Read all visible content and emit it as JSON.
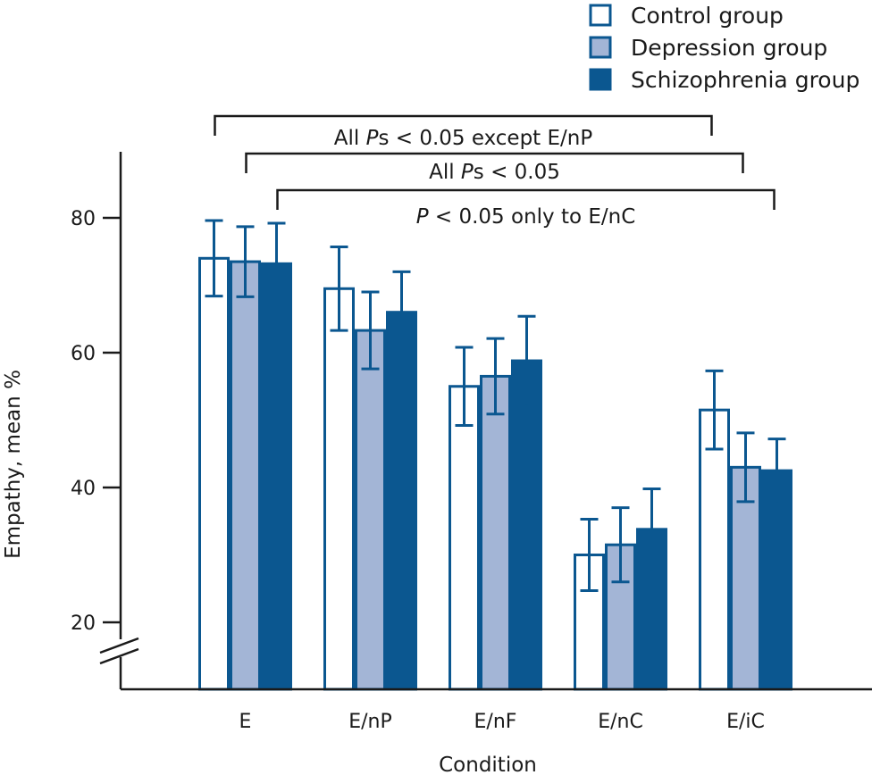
{
  "chart_data": {
    "type": "bar",
    "title": "",
    "xlabel": "Condition",
    "ylabel": "Empathy, mean %",
    "ylim": [
      10,
      90
    ],
    "axis_break": true,
    "yticks": [
      20,
      40,
      60,
      80
    ],
    "categories": [
      "E",
      "E/nP",
      "E/nF",
      "E/nC",
      "E/iC"
    ],
    "series": [
      {
        "name": "Control group",
        "color": "#ffffff",
        "stroke": "#0b5790",
        "values": [
          74.0,
          69.5,
          55.0,
          30.0,
          51.5
        ],
        "errors": [
          5.6,
          6.2,
          5.8,
          5.3,
          5.8
        ]
      },
      {
        "name": "Depression group",
        "color": "#a3b5d6",
        "stroke": "#0b5790",
        "values": [
          73.5,
          63.3,
          56.5,
          31.5,
          43.0
        ],
        "errors": [
          5.2,
          5.7,
          5.6,
          5.5,
          5.1
        ]
      },
      {
        "name": "Schizophrenia group",
        "color": "#0b5790",
        "stroke": "#0b5790",
        "values": [
          73.2,
          66.0,
          58.8,
          33.8,
          42.5
        ],
        "errors": [
          6.0,
          6.0,
          6.6,
          6.0,
          4.7
        ]
      }
    ],
    "legend_position": "top-right",
    "annotations": [
      {
        "text_parts": [
          "All ",
          "P",
          "s < 0.05 except E/nP"
        ],
        "italic_index": 1,
        "from_category": 0,
        "from_series": 0,
        "to_category": 4,
        "to_series": 0
      },
      {
        "text_parts": [
          "All ",
          "P",
          "s < 0.05"
        ],
        "italic_index": 1,
        "from_category": 0,
        "from_series": 1,
        "to_category": 4,
        "to_series": 1
      },
      {
        "text_parts": [
          "",
          "P",
          " < 0.05 only to E/nC"
        ],
        "italic_index": 1,
        "from_category": 0,
        "from_series": 2,
        "to_category": 4,
        "to_series": 2
      }
    ]
  }
}
